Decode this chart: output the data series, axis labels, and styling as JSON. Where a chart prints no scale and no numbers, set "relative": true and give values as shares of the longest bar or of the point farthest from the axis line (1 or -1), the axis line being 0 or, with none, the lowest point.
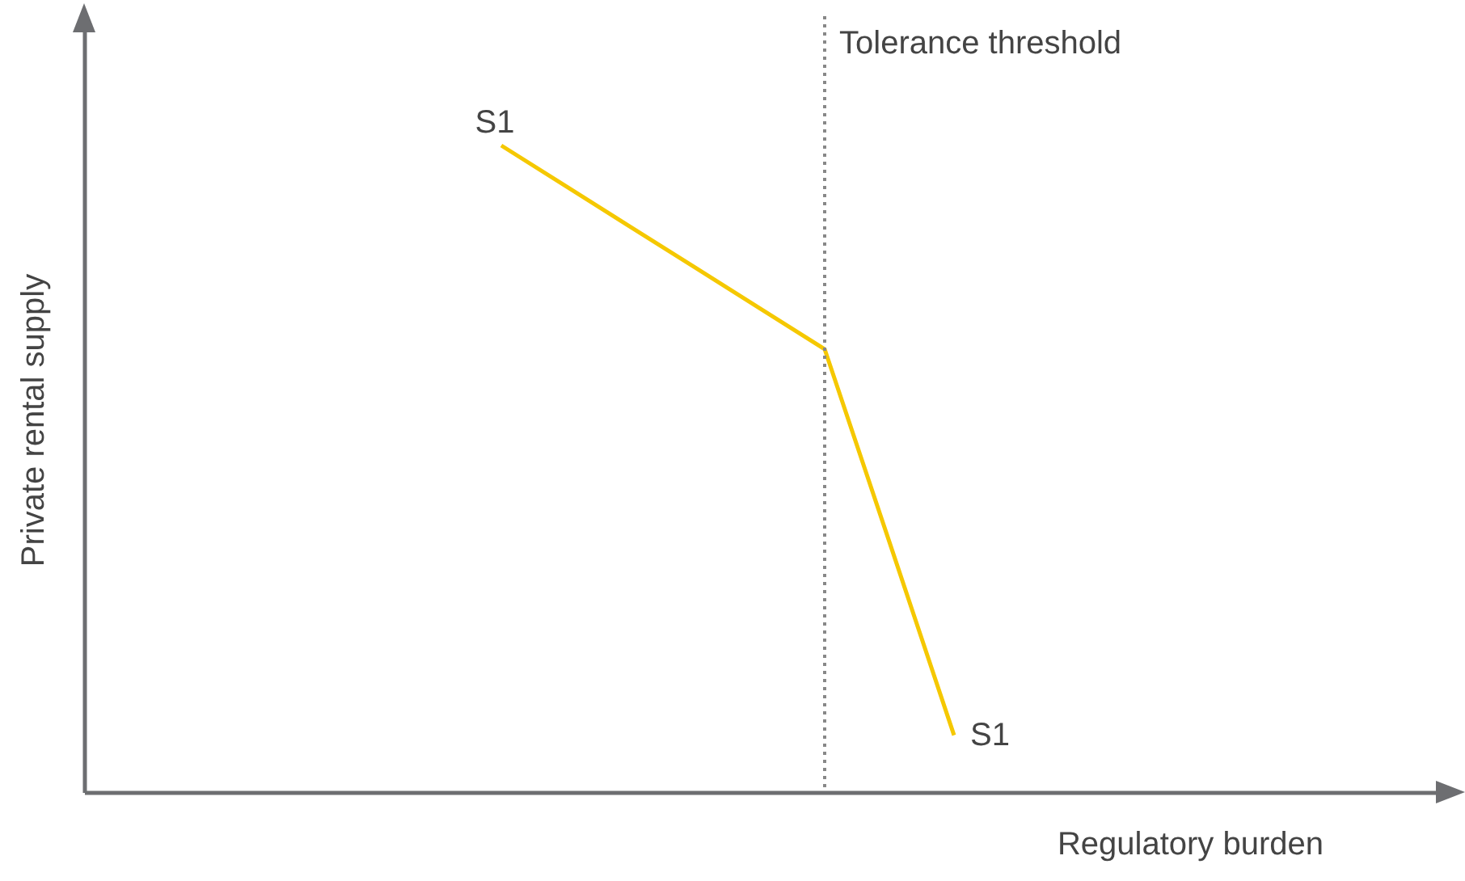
{
  "chart_data": {
    "type": "line",
    "relative": true,
    "xlabel": "Regulatory burden",
    "categories": [
      null,
      null,
      null,
      null,
      null,
      null,
      null,
      null
    ],
    "series": [
      {
        "color": "#f5c800",
        "values": [
          1,
          0.937,
          0.874,
          0.811,
          0.748,
          0.685,
          0.387,
          0.088
        ]
      }
    ],
    "annotations": [
      "Tolerance threshold",
      "S1",
      "S1",
      "Private rental supply"
    ],
    "tick_labels": false,
    "marker": "none",
    "line_style": "solid"
  }
}
